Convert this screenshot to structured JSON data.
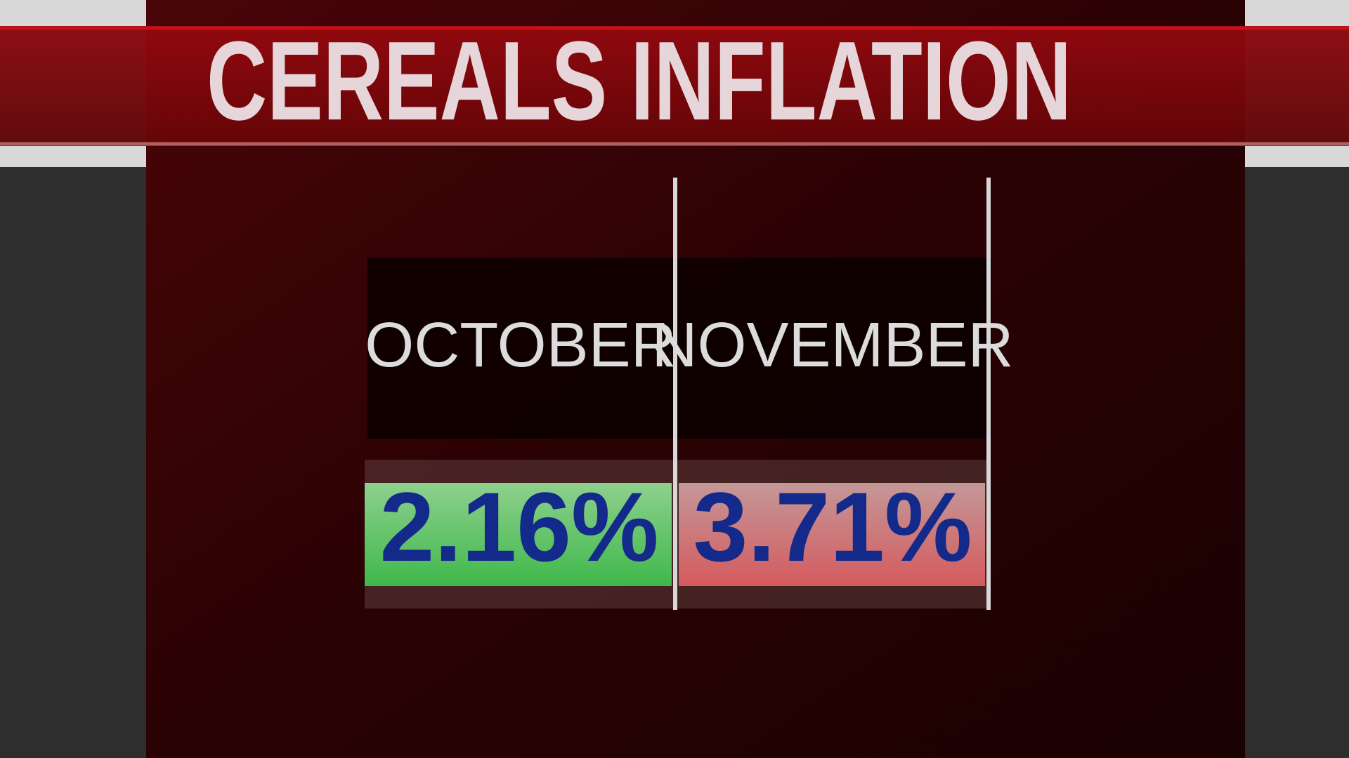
{
  "title": "CEREALS INFLATION",
  "columns": [
    {
      "label": "OCTOBER",
      "value": "2.16%"
    },
    {
      "label": "NOVEMBER",
      "value": "3.71%"
    }
  ]
}
